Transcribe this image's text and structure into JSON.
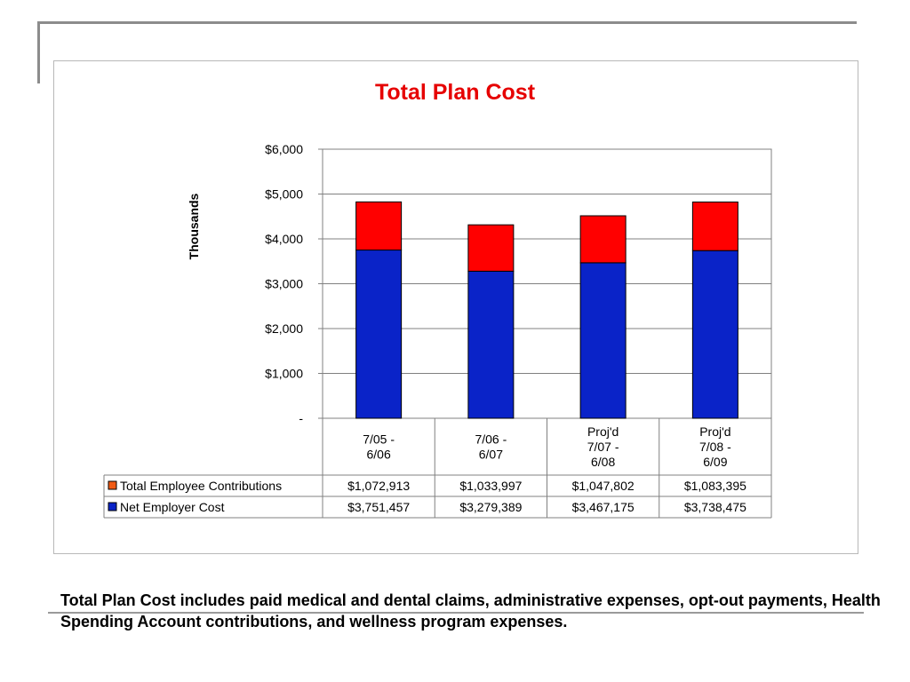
{
  "chart_data": {
    "type": "bar",
    "stacked": true,
    "title": "Total Plan Cost",
    "ylabel": "Thousands",
    "ylim": [
      0,
      6000
    ],
    "yticks": [
      0,
      1000,
      2000,
      3000,
      4000,
      5000,
      6000
    ],
    "ytick_labels": [
      "-",
      "$1,000",
      "$2,000",
      "$3,000",
      "$4,000",
      "$5,000",
      "$6,000"
    ],
    "categories": [
      [
        "7/05 -",
        "6/06"
      ],
      [
        "7/06 -",
        "6/07"
      ],
      [
        "Proj'd",
        "7/07 -",
        "6/08"
      ],
      [
        "Proj'd",
        "7/08 -",
        "6/09"
      ]
    ],
    "series": [
      {
        "name": "Net Employer Cost",
        "color": "#0a23c8",
        "values": [
          3751.457,
          3279.389,
          3467.175,
          3738.475
        ],
        "table_values": [
          "$3,751,457",
          "$3,279,389",
          "$3,467,175",
          "$3,738,475"
        ]
      },
      {
        "name": "Total Employee Contributions",
        "color": "#ff0000",
        "legend_color": "#f05a14",
        "values": [
          1072.913,
          1033.997,
          1047.802,
          1083.395
        ],
        "table_values": [
          "$1,072,913",
          "$1,033,997",
          "$1,047,802",
          "$1,083,395"
        ]
      }
    ],
    "table_row_order": [
      "Total Employee Contributions",
      "Net Employer Cost"
    ],
    "grid": true
  },
  "footnote": "Total Plan Cost includes paid medical and dental claims, administrative expenses, opt-out payments, Health Spending Account contributions, and wellness program  expenses."
}
